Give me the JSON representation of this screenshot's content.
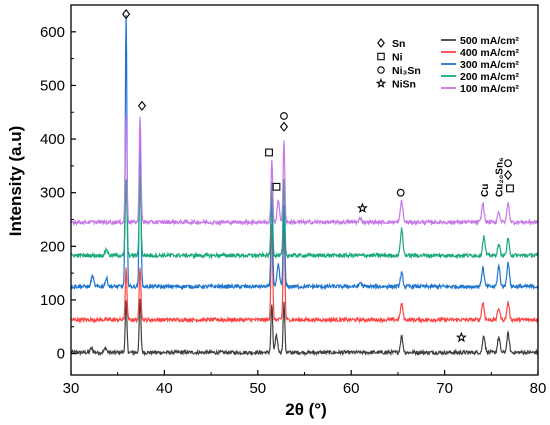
{
  "chart_data": {
    "type": "line",
    "xlabel": "2θ (°)",
    "ylabel": "Intensity (a.u)",
    "xlim": [
      30,
      80
    ],
    "ylim": [
      -40,
      650
    ],
    "x_ticks": [
      "30",
      "40",
      "50",
      "60",
      "70",
      "80"
    ],
    "y_ticks": [
      "0",
      "100",
      "200",
      "300",
      "400",
      "500",
      "600"
    ],
    "grid": false,
    "legend_position": "top-right",
    "phase_legend": [
      {
        "symbol": "diamond",
        "label": "Sn"
      },
      {
        "symbol": "square",
        "label": "Ni"
      },
      {
        "symbol": "circle",
        "label": "Ni₃Sn"
      },
      {
        "symbol": "star",
        "label": "NiSn"
      }
    ],
    "series": [
      {
        "name": "500 mA/cm²",
        "color": "#404040",
        "baseline": 2,
        "peaks": [
          [
            32.2,
            8
          ],
          [
            33.7,
            8
          ],
          [
            35.9,
            95
          ],
          [
            37.4,
            100
          ],
          [
            51.5,
            90
          ],
          [
            52.0,
            30
          ],
          [
            52.8,
            92
          ],
          [
            65.4,
            30
          ],
          [
            74.2,
            32
          ],
          [
            75.8,
            28
          ],
          [
            76.8,
            35
          ]
        ]
      },
      {
        "name": "400 mA/cm²",
        "color": "#ff4444",
        "baseline": 63,
        "peaks": [
          [
            35.9,
            95
          ],
          [
            37.4,
            100
          ],
          [
            51.5,
            180
          ],
          [
            52.8,
            185
          ],
          [
            65.4,
            30
          ],
          [
            74.1,
            32
          ],
          [
            75.8,
            22
          ],
          [
            76.8,
            32
          ]
        ]
      },
      {
        "name": "300 mA/cm²",
        "color": "#1f77d0",
        "baseline": 125,
        "peaks": [
          [
            32.3,
            20
          ],
          [
            33.8,
            15
          ],
          [
            35.9,
            505
          ],
          [
            37.4,
            285
          ],
          [
            51.5,
            175
          ],
          [
            52.2,
            40
          ],
          [
            52.8,
            150
          ],
          [
            61.0,
            8
          ],
          [
            65.4,
            25
          ],
          [
            74.1,
            35
          ],
          [
            75.8,
            38
          ],
          [
            76.8,
            45
          ]
        ]
      },
      {
        "name": "200 mA/cm²",
        "color": "#1aa97a",
        "baseline": 183,
        "peaks": [
          [
            33.8,
            12
          ],
          [
            35.9,
            140
          ],
          [
            37.4,
            155
          ],
          [
            51.5,
            140
          ],
          [
            52.8,
            140
          ],
          [
            65.4,
            50
          ],
          [
            74.2,
            35
          ],
          [
            75.8,
            20
          ],
          [
            76.8,
            30
          ]
        ]
      },
      {
        "name": "100 mA/cm²",
        "color": "#c777e8",
        "baseline": 245,
        "peaks": [
          [
            35.9,
            200
          ],
          [
            37.4,
            200
          ],
          [
            51.5,
            115
          ],
          [
            52.2,
            40
          ],
          [
            52.8,
            150
          ],
          [
            61.0,
            8
          ],
          [
            65.4,
            40
          ],
          [
            74.1,
            35
          ],
          [
            75.8,
            20
          ],
          [
            76.8,
            35
          ]
        ]
      }
    ],
    "peak_markers": [
      {
        "x": 35.9,
        "y": 633,
        "symbols": [
          "diamond"
        ]
      },
      {
        "x": 37.6,
        "y": 462,
        "symbols": [
          "diamond"
        ]
      },
      {
        "x": 51.2,
        "y": 375,
        "symbols": [
          "square"
        ]
      },
      {
        "x": 52.0,
        "y": 311,
        "symbols": [
          "square"
        ]
      },
      {
        "x": 52.8,
        "y": 443,
        "symbols": [
          "circle"
        ]
      },
      {
        "x": 52.8,
        "y": 423,
        "symbols": [
          "diamond"
        ]
      },
      {
        "x": 61.2,
        "y": 271,
        "symbols": [
          "star"
        ]
      },
      {
        "x": 65.3,
        "y": 300,
        "symbols": [
          "circle"
        ]
      },
      {
        "x": 71.8,
        "y": 30,
        "symbols": [
          "star"
        ]
      },
      {
        "x": 76.8,
        "y": 355,
        "symbols": [
          "circle"
        ]
      },
      {
        "x": 76.8,
        "y": 333,
        "symbols": [
          "diamond"
        ]
      },
      {
        "x": 77.0,
        "y": 308,
        "symbols": [
          "square"
        ]
      }
    ],
    "peak_labels": [
      {
        "text": "Cu",
        "x": 74.3,
        "y": 292
      },
      {
        "text": "Cu₂₀Sn₆",
        "x": 75.9,
        "y": 292
      }
    ]
  }
}
